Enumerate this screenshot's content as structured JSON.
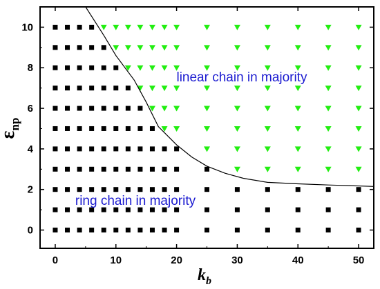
{
  "chart_data": {
    "type": "scatter",
    "title": "",
    "xlabel": "k",
    "xlabel_sub": "b",
    "ylabel": "ε",
    "ylabel_sub": "np",
    "xlim": [
      -2.5,
      52.5
    ],
    "ylim": [
      -0.9,
      11
    ],
    "xticks": [
      "0",
      "10",
      "20",
      "30",
      "40",
      "50"
    ],
    "xtick_values": [
      0,
      10,
      20,
      30,
      40,
      50
    ],
    "yticks": [
      "0",
      "2",
      "4",
      "6",
      "8",
      "10"
    ],
    "ytick_values": [
      0,
      2,
      4,
      6,
      8,
      10
    ],
    "grid": false,
    "legend": "none",
    "x_grid": [
      0,
      2,
      4,
      6,
      8,
      10,
      12,
      14,
      16,
      18,
      20,
      25,
      30,
      35,
      40,
      45,
      50
    ],
    "y_grid": [
      0,
      1,
      2,
      3,
      4,
      5,
      6,
      7,
      8,
      9,
      10
    ],
    "series": [
      {
        "marker": "square",
        "color": "#000000",
        "boundary_by_column": [
          10,
          10,
          10,
          10,
          9,
          8,
          7,
          6,
          5,
          4,
          4,
          3,
          2,
          2,
          2,
          2,
          2
        ]
      },
      {
        "marker": "triangle-down",
        "color": "#22ee11",
        "boundary_by_column": [
          10,
          10,
          10,
          10,
          9,
          8,
          7,
          6,
          5,
          4,
          4,
          3,
          2,
          2,
          2,
          2,
          2
        ]
      }
    ],
    "boundary_line": {
      "x": [
        5,
        8,
        10,
        13,
        15,
        17,
        20,
        22.5,
        25,
        28,
        31,
        35,
        40,
        45,
        52.5
      ],
      "y": [
        11,
        9.6,
        8.6,
        7.4,
        6.3,
        5.1,
        4.2,
        3.6,
        3.15,
        2.8,
        2.55,
        2.35,
        2.28,
        2.22,
        2.15
      ]
    },
    "annotations": [
      {
        "text": "linear chain in majority",
        "x": 26,
        "y": 7.4
      },
      {
        "text": "ring chain in majority",
        "x": 8.5,
        "y": 1.35
      }
    ]
  }
}
